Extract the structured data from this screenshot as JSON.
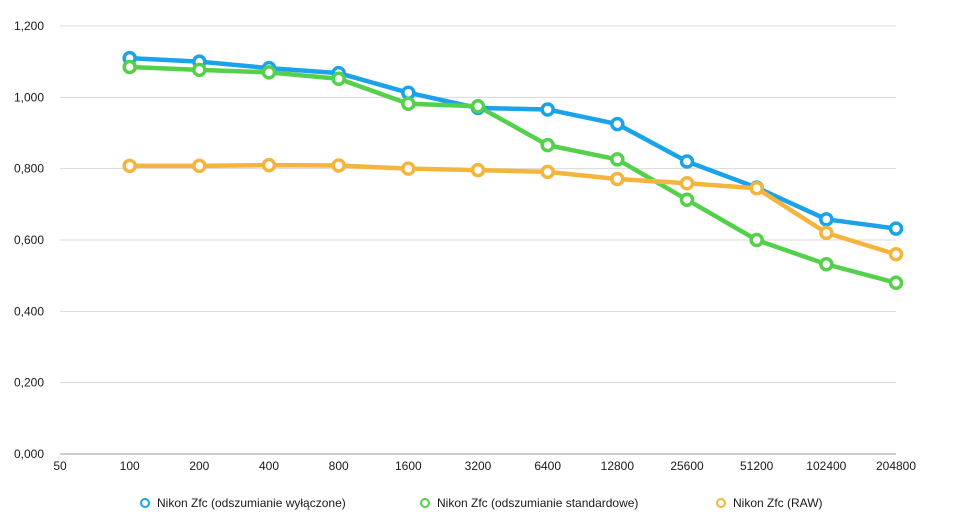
{
  "chart_data": {
    "type": "line",
    "categories": [
      "50",
      "100",
      "200",
      "400",
      "800",
      "1600",
      "3200",
      "6400",
      "12800",
      "25600",
      "51200",
      "102400",
      "204800"
    ],
    "y_ticks": [
      "0,000",
      "0,200",
      "0,400",
      "0,600",
      "0,800",
      "1,000",
      "1,200"
    ],
    "ylim": [
      0,
      1.2
    ],
    "grid": true,
    "legend_position": "bottom",
    "series": [
      {
        "name": "Nikon Zfc (odszumianie wyłączone)",
        "color": "#1aa3e8",
        "values": [
          null,
          1.11,
          1.1,
          1.082,
          1.068,
          1.013,
          0.97,
          0.966,
          0.925,
          0.82,
          0.747,
          0.658,
          0.632
        ]
      },
      {
        "name": "Nikon Zfc (odszumianie standardowe)",
        "color": "#55d04b",
        "values": [
          null,
          1.085,
          1.077,
          1.07,
          1.052,
          0.982,
          0.975,
          0.866,
          0.826,
          0.713,
          0.6,
          0.532,
          0.48
        ]
      },
      {
        "name": "Nikon Zfc (RAW)",
        "color": "#f5b43c",
        "values": [
          null,
          0.808,
          0.808,
          0.81,
          0.809,
          0.8,
          0.796,
          0.791,
          0.771,
          0.759,
          0.745,
          0.62,
          0.56
        ]
      }
    ]
  }
}
